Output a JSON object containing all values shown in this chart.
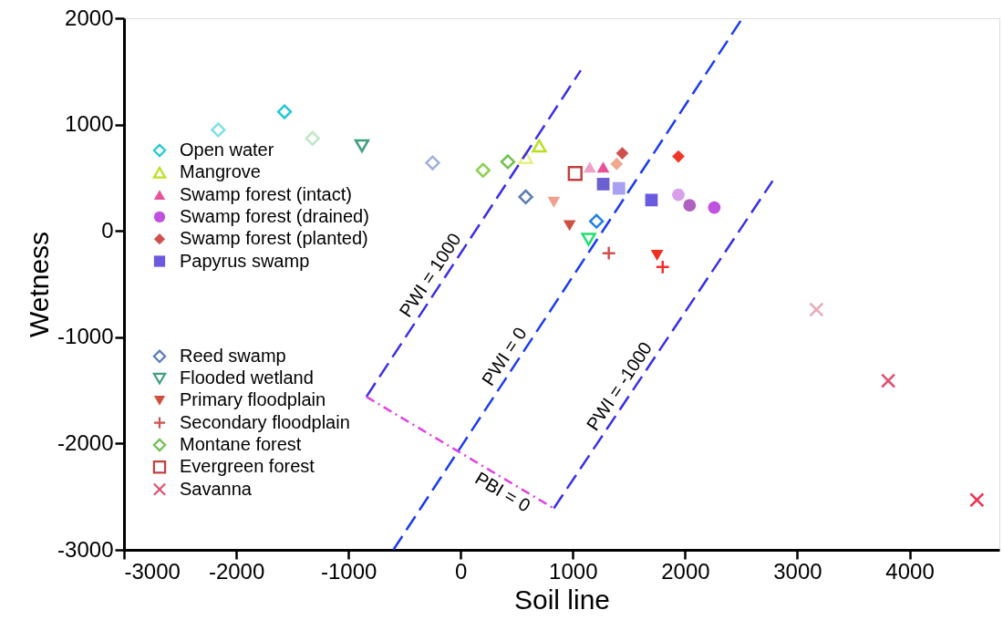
{
  "chart_data": {
    "type": "scatter",
    "xlabel": "Soil line",
    "ylabel": "Wetness",
    "xlim": [
      -3000,
      4800
    ],
    "ylim": [
      -3000,
      2000
    ],
    "xticks": [
      -3000,
      -2000,
      -1000,
      0,
      1000,
      2000,
      3000,
      4000
    ],
    "yticks": [
      -3000,
      -2000,
      -1000,
      0,
      1000,
      2000
    ],
    "grid": false,
    "legend": "left",
    "series": [
      {
        "name": "Open water",
        "marker": "diamond-open",
        "color": "#22c8d8",
        "colors": [
          "#80e0e8",
          "#22c8d8"
        ],
        "x": [
          -2160,
          -1570
        ],
        "values": [
          950,
          1120
        ]
      },
      {
        "name": "Mangrove",
        "marker": "triangle-open",
        "color": "#b8e020",
        "colors": [
          "#e8f080",
          "#b8e020"
        ],
        "x": [
          580,
          700
        ],
        "values": [
          690,
          800
        ]
      },
      {
        "name": "Swamp forest (intact)",
        "marker": "triangle",
        "color": "#e8509a",
        "colors": [
          "#f0a0c8",
          "#e8509a"
        ],
        "x": [
          1150,
          1270
        ],
        "values": [
          600,
          600
        ]
      },
      {
        "name": "Swamp forest (drained)",
        "marker": "circle",
        "color": "#c050e0",
        "colors": [
          "#d8a0e8",
          "#b060c0",
          "#c050e0"
        ],
        "x": [
          1940,
          2040,
          2260
        ],
        "values": [
          340,
          240,
          220
        ]
      },
      {
        "name": "Swamp forest (planted)",
        "marker": "diamond",
        "color": "#d05050",
        "colors": [
          "#d05050",
          "#f0a890",
          "#f03828"
        ],
        "x": [
          1440,
          1390,
          1940
        ],
        "values": [
          730,
          630,
          700
        ]
      },
      {
        "name": "Papyrus swamp",
        "marker": "square",
        "color": "#6a5ae0",
        "colors": [
          "#6a60d0",
          "#a8a0f0",
          "#6a5ae0"
        ],
        "x": [
          1270,
          1410,
          1700
        ],
        "values": [
          440,
          400,
          290
        ]
      },
      {
        "name": "Reed swamp",
        "marker": "diamond-open",
        "color": "#5a7ab8",
        "colors": [
          "#a0b0e0",
          "#5a7ab8",
          "#2080e8"
        ],
        "x": [
          -250,
          580,
          1210
        ],
        "values": [
          640,
          320,
          90
        ]
      },
      {
        "name": "Flooded wetland",
        "marker": "triangle-down-open",
        "color": "#40a080",
        "colors": [
          "#40a080",
          "#20e070"
        ],
        "x": [
          -880,
          1140
        ],
        "values": [
          800,
          -80
        ]
      },
      {
        "name": "Primary floodplain",
        "marker": "triangle-down",
        "color": "#d05040",
        "colors": [
          "#f0a090",
          "#d05040",
          "#f03020"
        ],
        "x": [
          830,
          970,
          1750
        ],
        "values": [
          270,
          50,
          -230
        ]
      },
      {
        "name": "Secondary floodplain",
        "marker": "cross",
        "color": "#d05050",
        "colors": [
          "#d05050",
          "#f03030"
        ],
        "x": [
          1320,
          1800
        ],
        "values": [
          -210,
          -340
        ]
      },
      {
        "name": "Montane forest",
        "marker": "diamond-open",
        "color": "#70c050",
        "colors": [
          "#c0e8c8",
          "#90d050",
          "#70c050"
        ],
        "x": [
          -1320,
          200,
          420
        ],
        "values": [
          870,
          570,
          650
        ]
      },
      {
        "name": "Evergreen forest",
        "marker": "square-open",
        "color": "#c04040",
        "colors": [
          "#c04040"
        ],
        "x": [
          1020
        ],
        "values": [
          540
        ]
      },
      {
        "name": "Savanna",
        "marker": "x",
        "color": "#e05070",
        "colors": [
          "#e8a8b8",
          "#e05070",
          "#f03050"
        ],
        "x": [
          3170,
          3810,
          4600
        ],
        "values": [
          -740,
          -1410,
          -2530
        ]
      },
      {
        "name": "PWI = 0",
        "type": "line",
        "line_style": "dashed",
        "color": "#1a3cf0",
        "x": [
          -600,
          2510
        ],
        "values": [
          -3000,
          2000
        ]
      },
      {
        "name": "PWI = 1000",
        "type": "line",
        "line_style": "dashed",
        "color": "#3a2ee8",
        "x": [
          -840,
          1070
        ],
        "values": [
          -1560,
          1510
        ]
      },
      {
        "name": "PWI = -1000",
        "type": "line",
        "line_style": "dashed",
        "color": "#3a2ee8",
        "x": [
          830,
          2780
        ],
        "values": [
          -2610,
          470
        ]
      },
      {
        "name": "PBI = 0",
        "type": "line",
        "line_style": "dashdot",
        "color": "#e040e0",
        "x": [
          -840,
          830
        ],
        "values": [
          -1560,
          -2610
        ]
      }
    ]
  }
}
